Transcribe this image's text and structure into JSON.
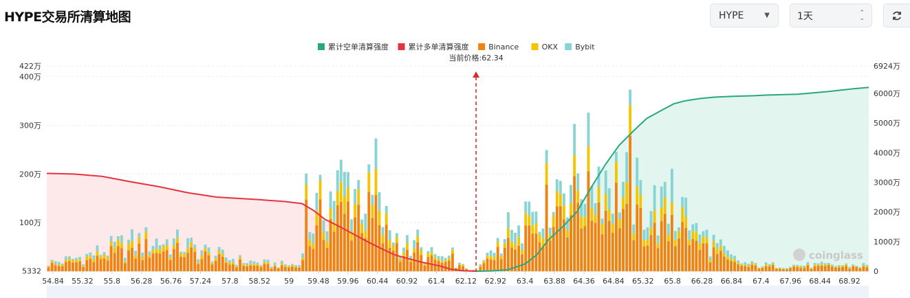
{
  "header": {
    "title": "HYPE交易所清算地图",
    "symbol_select": {
      "value": "HYPE"
    },
    "range_select": {
      "value": "1天"
    },
    "refresh_icon": "refresh-icon"
  },
  "chart_data": {
    "type": "bar",
    "x_ticks": [
      "54.84",
      "55.32",
      "55.8",
      "56.28",
      "56.76",
      "57.24",
      "57.8",
      "58.52",
      "59",
      "59.48",
      "59.96",
      "60.44",
      "60.92",
      "61.4",
      "62.12",
      "62.92",
      "63.4",
      "63.88",
      "64.36",
      "64.84",
      "65.32",
      "65.8",
      "66.28",
      "66.84",
      "67.4",
      "67.96",
      "68.44",
      "68.92"
    ],
    "x_range": [
      54.84,
      69.2
    ],
    "left_axis": {
      "ticks": [
        5332,
        1000000,
        2000000,
        3000000,
        4000000
      ],
      "tick_labels": [
        "5332",
        "100万",
        "200万",
        "300万",
        "400万"
      ],
      "max_label": "422万",
      "max": 4220000
    },
    "right_axis": {
      "ticks": [
        0,
        10000000,
        20000000,
        30000000,
        40000000,
        50000000,
        60000000
      ],
      "tick_labels": [
        "0",
        "1000万",
        "2000万",
        "3000万",
        "4000万",
        "5000万",
        "6000万"
      ],
      "max_label": "6924万",
      "max": 69240000
    },
    "current_price": 62.34,
    "current_price_label": "当前价格:62.34",
    "legend": [
      {
        "name": "累计空单清算强度",
        "color": "#26a882"
      },
      {
        "name": "累计多单清算强度",
        "color": "#e6323e"
      },
      {
        "name": "Binance",
        "color": "#f0820f"
      },
      {
        "name": "OKX",
        "color": "#f5c400"
      },
      {
        "name": "Bybit",
        "color": "#88d4d4"
      }
    ],
    "cumulative_long": {
      "x": [
        54.84,
        55.3,
        55.8,
        56.3,
        56.8,
        57.3,
        57.8,
        58.5,
        59.0,
        59.3,
        59.5,
        59.7,
        59.96,
        60.2,
        60.44,
        60.7,
        60.92,
        61.2,
        61.4,
        61.7,
        61.9,
        62.12,
        62.34
      ],
      "values": [
        33000000,
        32800000,
        32000000,
        30200000,
        28500000,
        26500000,
        25000000,
        24200000,
        23500000,
        22800000,
        20500000,
        17500000,
        15000000,
        12500000,
        10000000,
        7500000,
        5500000,
        4000000,
        3000000,
        1800000,
        700000,
        150000,
        0
      ]
    },
    "cumulative_short": {
      "x": [
        62.34,
        62.6,
        62.9,
        63.2,
        63.4,
        63.6,
        63.88,
        64.1,
        64.36,
        64.6,
        64.84,
        65.1,
        65.32,
        65.6,
        65.8,
        66.0,
        66.28,
        66.5,
        66.84,
        67.2,
        67.4,
        67.96,
        68.44,
        68.92,
        69.2
      ],
      "values": [
        0,
        100000,
        500000,
        2500000,
        5500000,
        10500000,
        15500000,
        20000000,
        28500000,
        36000000,
        42500000,
        47500000,
        51500000,
        54500000,
        56500000,
        57500000,
        58300000,
        58700000,
        59000000,
        59200000,
        59400000,
        59700000,
        60500000,
        61500000,
        62000000
      ]
    }
  },
  "watermark": "coinglass"
}
